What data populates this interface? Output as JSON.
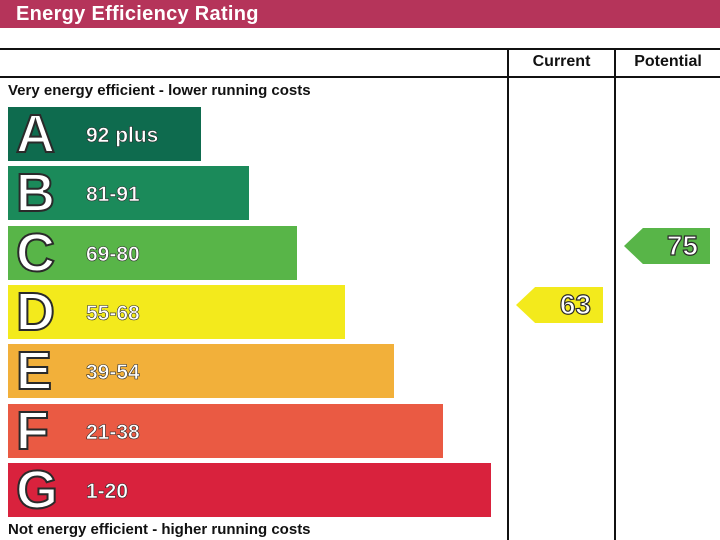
{
  "title": "Energy Efficiency Rating",
  "columns": {
    "current": "Current",
    "potential": "Potential"
  },
  "top_caption": "Very energy efficient - lower running costs",
  "bottom_caption": "Not energy efficient - higher running costs",
  "colors": {
    "title_bar": "#b5345a",
    "A": "#0e6b4e",
    "B": "#1b8a5a",
    "C": "#58b548",
    "D": "#f3ea1c",
    "E": "#f2b03a",
    "F": "#ea5a43",
    "G": "#d9223d"
  },
  "chart_data": {
    "type": "bar",
    "categories": [
      "A",
      "B",
      "C",
      "D",
      "E",
      "F",
      "G"
    ],
    "ranges": [
      "92 plus",
      "81-91",
      "69-80",
      "55-68",
      "39-54",
      "21-38",
      "1-20"
    ],
    "current": {
      "value": 63,
      "band": "D"
    },
    "potential": {
      "value": 75,
      "band": "C"
    }
  }
}
